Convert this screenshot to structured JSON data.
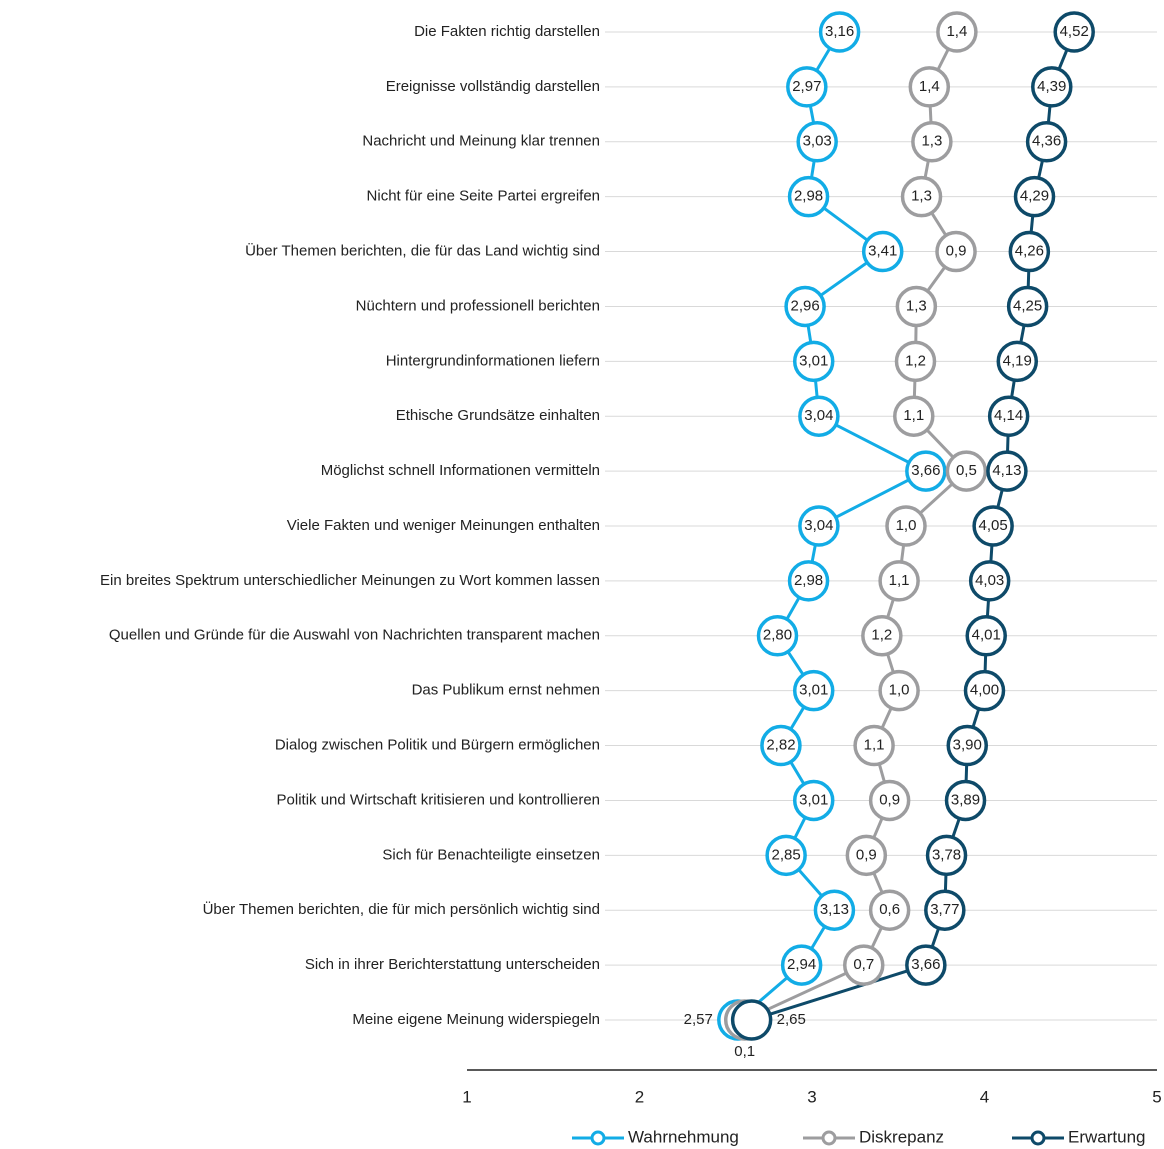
{
  "chart_data": {
    "type": "dumbbell",
    "categories": [
      "Die Fakten richtig darstellen",
      "Ereignisse vollständig darstellen",
      "Nachricht und Meinung klar trennen",
      "Nicht für eine Seite Partei ergreifen",
      "Über Themen berichten, die für das Land wichtig sind",
      "Nüchtern und professionell berichten",
      "Hintergrundinformationen liefern",
      "Ethische Grundsätze einhalten",
      "Möglichst schnell Informationen vermitteln",
      "Viele Fakten und weniger Meinungen enthalten",
      "Ein breites Spektrum unterschiedlicher Meinungen zu Wort kommen lassen",
      "Quellen und Gründe für die Auswahl von Nachrichten transparent machen",
      "Das Publikum ernst nehmen",
      "Dialog zwischen Politik und Bürgern ermöglichen",
      "Politik und Wirtschaft kritisieren und kontrollieren",
      "Sich für Benachteiligte einsetzen",
      "Über Themen berichten, die für mich persönlich wichtig sind",
      "Sich in ihrer Berichterstattung unterscheiden",
      "Meine eigene Meinung widerspiegeln"
    ],
    "series": [
      {
        "name": "Wahrnehmung",
        "color": "#12ace6",
        "values": [
          3.16,
          2.97,
          3.03,
          2.98,
          3.41,
          2.96,
          3.01,
          3.04,
          3.66,
          3.04,
          2.98,
          2.8,
          3.01,
          2.82,
          3.01,
          2.85,
          3.13,
          2.94,
          2.57
        ],
        "value_labels": [
          "3,16",
          "2,97",
          "3,03",
          "2,98",
          "3,41",
          "2,96",
          "3,01",
          "3,04",
          "3,66",
          "3,04",
          "2,98",
          "2,80",
          "3,01",
          "2,82",
          "3,01",
          "2,85",
          "3,13",
          "2,94",
          "2,57"
        ]
      },
      {
        "name": "Diskrepanz",
        "color": "#9d9d9f",
        "values": [
          1.4,
          1.4,
          1.3,
          1.3,
          0.9,
          1.3,
          1.2,
          1.1,
          0.5,
          1.0,
          1.1,
          1.2,
          1.0,
          1.1,
          0.9,
          0.9,
          0.6,
          0.7,
          0.1
        ],
        "value_labels": [
          "1,4",
          "1,4",
          "1,3",
          "1,3",
          "0,9",
          "1,3",
          "1,2",
          "1,1",
          "0,5",
          "1,0",
          "1,1",
          "1,2",
          "1,0",
          "1,1",
          "0,9",
          "0,9",
          "0,6",
          "0,7",
          "0,1"
        ]
      },
      {
        "name": "Erwartung",
        "color": "#0e4a69",
        "values": [
          4.52,
          4.39,
          4.36,
          4.29,
          4.26,
          4.25,
          4.19,
          4.14,
          4.13,
          4.05,
          4.03,
          4.01,
          4.0,
          3.9,
          3.89,
          3.78,
          3.77,
          3.66,
          2.65
        ],
        "value_labels": [
          "4,52",
          "4,39",
          "4,36",
          "4,29",
          "4,26",
          "4,25",
          "4,19",
          "4,14",
          "4,13",
          "4,05",
          "4,03",
          "4,01",
          "4,00",
          "3,90",
          "3,89",
          "3,78",
          "3,77",
          "3,66",
          "2,65"
        ]
      }
    ],
    "xlim": [
      1,
      5
    ],
    "xticks": [
      1,
      2,
      3,
      4,
      5
    ],
    "grid": true
  }
}
